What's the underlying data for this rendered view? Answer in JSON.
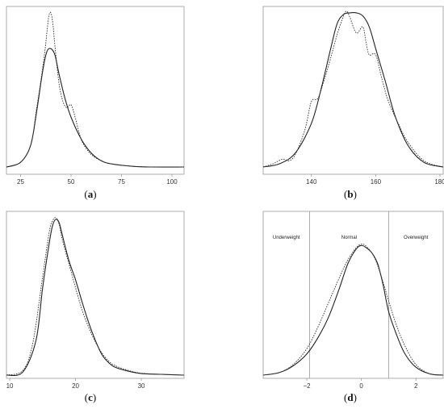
{
  "chart_data": [
    {
      "panel": "a",
      "caption": "(a)",
      "type": "line",
      "xlim": [
        18,
        106
      ],
      "xticks": [
        25,
        50,
        75,
        100
      ],
      "xticklabels": [
        "25",
        "50",
        "75",
        "100"
      ],
      "series": [
        {
          "style": "solid",
          "x": [
            18,
            25,
            30,
            33,
            36,
            38,
            40,
            42,
            44,
            47,
            50,
            55,
            60,
            65,
            70,
            80,
            90,
            106
          ],
          "y": [
            0.0,
            0.03,
            0.14,
            0.36,
            0.62,
            0.74,
            0.76,
            0.72,
            0.6,
            0.44,
            0.32,
            0.18,
            0.09,
            0.04,
            0.02,
            0.005,
            0.0,
            0.0
          ]
        },
        {
          "style": "dotted",
          "x": [
            18,
            25,
            30,
            33,
            35,
            37,
            38,
            39,
            40,
            41,
            42,
            44,
            46,
            48,
            50,
            52,
            54,
            56,
            60,
            65,
            70,
            80,
            90,
            106
          ],
          "y": [
            0.0,
            0.03,
            0.14,
            0.38,
            0.55,
            0.74,
            0.86,
            0.97,
            0.99,
            0.92,
            0.78,
            0.54,
            0.42,
            0.38,
            0.4,
            0.32,
            0.22,
            0.15,
            0.08,
            0.04,
            0.02,
            0.005,
            0.0,
            0.0
          ]
        }
      ]
    },
    {
      "panel": "b",
      "caption": "(b)",
      "type": "line",
      "xlim": [
        125,
        181
      ],
      "xticks": [
        140,
        160,
        180
      ],
      "xticklabels": [
        "140",
        "160",
        "180"
      ],
      "series": [
        {
          "style": "solid",
          "x": [
            125,
            130,
            135,
            140,
            143,
            146,
            148,
            150,
            152,
            154,
            156,
            158,
            160,
            163,
            166,
            170,
            175,
            181
          ],
          "y": [
            0.0,
            0.02,
            0.09,
            0.28,
            0.5,
            0.76,
            0.92,
            0.98,
            0.99,
            0.99,
            0.97,
            0.9,
            0.76,
            0.55,
            0.33,
            0.14,
            0.03,
            0.0
          ]
        },
        {
          "style": "dotted",
          "x": [
            125,
            128,
            131,
            133,
            135,
            138,
            140,
            142,
            144,
            146,
            148,
            150,
            151,
            152,
            154,
            156,
            157,
            158,
            160,
            162,
            164,
            167,
            170,
            175,
            181
          ],
          "y": [
            0.0,
            0.02,
            0.05,
            0.04,
            0.08,
            0.24,
            0.42,
            0.44,
            0.56,
            0.7,
            0.85,
            0.97,
            1.0,
            0.96,
            0.86,
            0.9,
            0.8,
            0.72,
            0.72,
            0.56,
            0.42,
            0.28,
            0.16,
            0.04,
            0.0
          ]
        }
      ]
    },
    {
      "panel": "c",
      "caption": "(c)",
      "type": "line",
      "xlim": [
        9.5,
        36.5
      ],
      "xticks": [
        10,
        20,
        30
      ],
      "xticklabels": [
        "10",
        "20",
        "30"
      ],
      "series": [
        {
          "style": "solid",
          "x": [
            9.5,
            12,
            14,
            15,
            16,
            16.5,
            17,
            17.5,
            18,
            19,
            20,
            21,
            22,
            23,
            24,
            25,
            26,
            28,
            30,
            33,
            36.5
          ],
          "y": [
            0.0,
            0.02,
            0.22,
            0.55,
            0.83,
            0.94,
            0.98,
            0.96,
            0.88,
            0.72,
            0.6,
            0.46,
            0.33,
            0.22,
            0.13,
            0.08,
            0.05,
            0.025,
            0.01,
            0.005,
            0.0
          ]
        },
        {
          "style": "dotted",
          "x": [
            9.5,
            12,
            13.5,
            15,
            16,
            16.5,
            17,
            17.5,
            18,
            19,
            20,
            21,
            22,
            23,
            24,
            25,
            26,
            28,
            30,
            33,
            36.5
          ],
          "y": [
            0.0,
            0.03,
            0.2,
            0.62,
            0.9,
            0.97,
            0.99,
            0.95,
            0.85,
            0.7,
            0.55,
            0.41,
            0.3,
            0.21,
            0.14,
            0.09,
            0.06,
            0.03,
            0.012,
            0.005,
            0.0
          ]
        }
      ]
    },
    {
      "panel": "d",
      "caption": "(d)",
      "type": "line",
      "xlim": [
        -3.6,
        3.0
      ],
      "xticks": [
        -2,
        0,
        2
      ],
      "xticklabels": [
        "−2",
        "0",
        "2"
      ],
      "vlines": [
        -1.9,
        1.0
      ],
      "region_labels": [
        "Underweight",
        "Normal",
        "Overweight"
      ],
      "series": [
        {
          "style": "solid",
          "x": [
            -3.6,
            -3.0,
            -2.5,
            -2.0,
            -1.6,
            -1.2,
            -0.8,
            -0.5,
            -0.2,
            0.0,
            0.2,
            0.4,
            0.6,
            0.8,
            1.0,
            1.3,
            1.6,
            2.0,
            2.5,
            3.0
          ],
          "y": [
            0.0,
            0.02,
            0.07,
            0.16,
            0.28,
            0.44,
            0.66,
            0.84,
            0.95,
            0.98,
            0.96,
            0.92,
            0.84,
            0.68,
            0.48,
            0.3,
            0.16,
            0.06,
            0.01,
            0.0
          ]
        },
        {
          "style": "dotted",
          "x": [
            -3.6,
            -3.0,
            -2.5,
            -2.0,
            -1.6,
            -1.2,
            -0.8,
            -0.5,
            -0.2,
            0.0,
            0.2,
            0.5,
            0.8,
            1.0,
            1.3,
            1.6,
            2.0,
            2.5,
            3.0
          ],
          "y": [
            0.0,
            0.02,
            0.08,
            0.2,
            0.36,
            0.55,
            0.74,
            0.87,
            0.96,
            0.99,
            0.97,
            0.88,
            0.7,
            0.56,
            0.37,
            0.22,
            0.08,
            0.01,
            0.0
          ]
        }
      ]
    }
  ]
}
